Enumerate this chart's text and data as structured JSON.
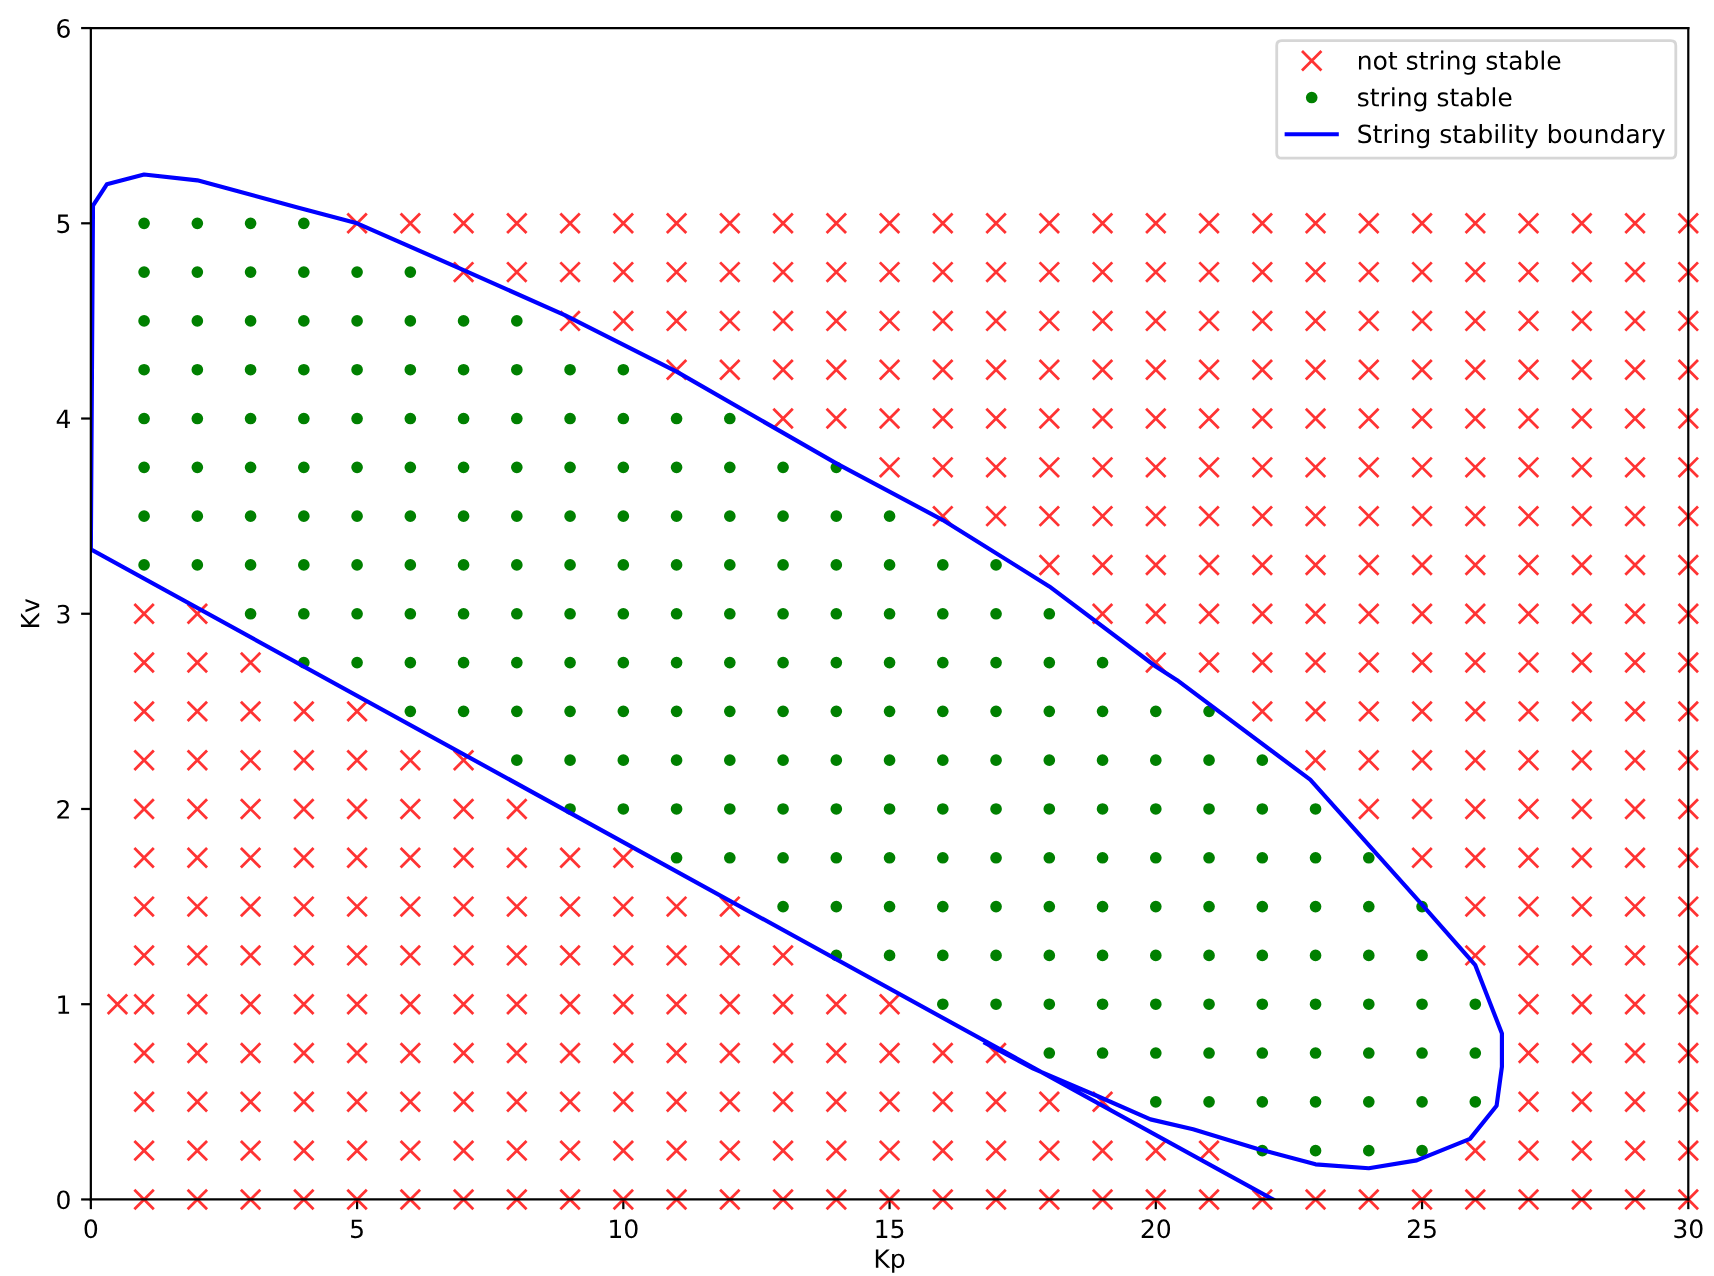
{
  "chart_data": {
    "type": "scatter",
    "xlabel": "Kp",
    "ylabel": "Kv",
    "xlim": [
      0,
      30
    ],
    "ylim": [
      0,
      6
    ],
    "xticks": [
      0,
      5,
      10,
      15,
      20,
      25,
      30
    ],
    "yticks": [
      0,
      1,
      2,
      3,
      4,
      5,
      6
    ],
    "grid": false,
    "legend": "top right",
    "series": [
      {
        "name": "not string stable",
        "marker": "cross",
        "color": "#ff0000",
        "x": [
          5,
          6,
          7,
          8,
          9,
          10,
          11,
          12,
          13,
          14,
          15,
          16,
          17,
          18,
          19,
          20,
          21,
          22,
          23,
          24,
          25,
          26,
          27,
          28,
          29,
          30,
          7,
          8,
          9,
          10,
          11,
          12,
          13,
          14,
          15,
          16,
          17,
          18,
          19,
          20,
          21,
          22,
          23,
          24,
          25,
          26,
          27,
          28,
          29,
          30,
          9,
          10,
          11,
          12,
          13,
          14,
          15,
          16,
          17,
          18,
          19,
          20,
          21,
          22,
          23,
          24,
          25,
          26,
          27,
          28,
          29,
          30,
          11,
          12,
          13,
          14,
          15,
          16,
          17,
          18,
          19,
          20,
          21,
          22,
          23,
          24,
          25,
          26,
          27,
          28,
          29,
          30,
          13,
          14,
          15,
          16,
          17,
          18,
          19,
          20,
          21,
          22,
          23,
          24,
          25,
          26,
          27,
          28,
          29,
          30,
          15,
          16,
          17,
          18,
          19,
          20,
          21,
          22,
          23,
          24,
          25,
          26,
          27,
          28,
          29,
          30,
          16,
          17,
          18,
          19,
          20,
          21,
          22,
          23,
          24,
          25,
          26,
          27,
          28,
          29,
          30,
          18,
          19,
          20,
          21,
          22,
          23,
          24,
          25,
          26,
          27,
          28,
          29,
          30,
          1,
          2,
          19,
          20,
          21,
          22,
          23,
          24,
          25,
          26,
          27,
          28,
          29,
          30,
          1,
          2,
          3,
          20,
          21,
          22,
          23,
          24,
          25,
          26,
          27,
          28,
          29,
          30,
          1,
          2,
          3,
          4,
          5,
          22,
          23,
          24,
          25,
          26,
          27,
          28,
          29,
          30,
          1,
          2,
          3,
          4,
          5,
          6,
          7,
          23,
          24,
          25,
          26,
          27,
          28,
          29,
          30,
          1,
          2,
          3,
          4,
          5,
          6,
          7,
          8,
          24,
          25,
          26,
          27,
          28,
          29,
          30,
          1,
          2,
          3,
          4,
          5,
          6,
          7,
          8,
          9,
          10,
          25,
          26,
          27,
          28,
          29,
          30,
          1,
          2,
          3,
          4,
          5,
          6,
          7,
          8,
          9,
          10,
          11,
          12,
          26,
          27,
          28,
          29,
          30,
          1,
          2,
          3,
          4,
          5,
          6,
          7,
          8,
          9,
          10,
          11,
          12,
          13,
          26,
          27,
          28,
          29,
          30,
          0.5,
          1,
          2,
          3,
          4,
          5,
          6,
          7,
          8,
          9,
          10,
          11,
          12,
          13,
          14,
          15,
          27,
          28,
          29,
          30,
          1,
          2,
          3,
          4,
          5,
          6,
          7,
          8,
          9,
          10,
          11,
          12,
          13,
          14,
          15,
          16,
          17,
          27,
          28,
          29,
          30,
          1,
          2,
          3,
          4,
          5,
          6,
          7,
          8,
          9,
          10,
          11,
          12,
          13,
          14,
          15,
          16,
          17,
          18,
          19,
          27,
          28,
          29,
          30,
          1,
          2,
          3,
          4,
          5,
          6,
          7,
          8,
          9,
          10,
          11,
          12,
          13,
          14,
          15,
          16,
          17,
          18,
          19,
          20,
          21,
          26,
          27,
          28,
          29,
          30,
          1,
          2,
          3,
          4,
          5,
          6,
          7,
          8,
          9,
          10,
          11,
          12,
          13,
          14,
          15,
          16,
          17,
          18,
          19,
          20,
          21,
          22,
          23,
          24,
          25,
          26,
          27,
          28,
          29,
          30
        ],
        "values": [
          5,
          5,
          5,
          5,
          5,
          5,
          5,
          5,
          5,
          5,
          5,
          5,
          5,
          5,
          5,
          5,
          5,
          5,
          5,
          5,
          5,
          5,
          5,
          5,
          5,
          5,
          4.75,
          4.75,
          4.75,
          4.75,
          4.75,
          4.75,
          4.75,
          4.75,
          4.75,
          4.75,
          4.75,
          4.75,
          4.75,
          4.75,
          4.75,
          4.75,
          4.75,
          4.75,
          4.75,
          4.75,
          4.75,
          4.75,
          4.75,
          4.75,
          4.5,
          4.5,
          4.5,
          4.5,
          4.5,
          4.5,
          4.5,
          4.5,
          4.5,
          4.5,
          4.5,
          4.5,
          4.5,
          4.5,
          4.5,
          4.5,
          4.5,
          4.5,
          4.5,
          4.5,
          4.5,
          4.5,
          4.25,
          4.25,
          4.25,
          4.25,
          4.25,
          4.25,
          4.25,
          4.25,
          4.25,
          4.25,
          4.25,
          4.25,
          4.25,
          4.25,
          4.25,
          4.25,
          4.25,
          4.25,
          4.25,
          4.25,
          4,
          4,
          4,
          4,
          4,
          4,
          4,
          4,
          4,
          4,
          4,
          4,
          4,
          4,
          4,
          4,
          4,
          4,
          3.75,
          3.75,
          3.75,
          3.75,
          3.75,
          3.75,
          3.75,
          3.75,
          3.75,
          3.75,
          3.75,
          3.75,
          3.75,
          3.75,
          3.75,
          3.75,
          3.5,
          3.5,
          3.5,
          3.5,
          3.5,
          3.5,
          3.5,
          3.5,
          3.5,
          3.5,
          3.5,
          3.5,
          3.5,
          3.5,
          3.5,
          3.25,
          3.25,
          3.25,
          3.25,
          3.25,
          3.25,
          3.25,
          3.25,
          3.25,
          3.25,
          3.25,
          3.25,
          3.25,
          3,
          3,
          3,
          3,
          3,
          3,
          3,
          3,
          3,
          3,
          3,
          3,
          3,
          3,
          2.75,
          2.75,
          2.75,
          2.75,
          2.75,
          2.75,
          2.75,
          2.75,
          2.75,
          2.75,
          2.75,
          2.75,
          2.75,
          2.75,
          2.5,
          2.5,
          2.5,
          2.5,
          2.5,
          2.5,
          2.5,
          2.5,
          2.5,
          2.5,
          2.5,
          2.5,
          2.5,
          2.5,
          2.25,
          2.25,
          2.25,
          2.25,
          2.25,
          2.25,
          2.25,
          2.25,
          2.25,
          2.25,
          2.25,
          2.25,
          2.25,
          2.25,
          2.25,
          2,
          2,
          2,
          2,
          2,
          2,
          2,
          2,
          2,
          2,
          2,
          2,
          2,
          2,
          2,
          1.75,
          1.75,
          1.75,
          1.75,
          1.75,
          1.75,
          1.75,
          1.75,
          1.75,
          1.75,
          1.75,
          1.75,
          1.75,
          1.75,
          1.75,
          1.75,
          1.5,
          1.5,
          1.5,
          1.5,
          1.5,
          1.5,
          1.5,
          1.5,
          1.5,
          1.5,
          1.5,
          1.5,
          1.5,
          1.5,
          1.5,
          1.5,
          1.5,
          1.25,
          1.25,
          1.25,
          1.25,
          1.25,
          1.25,
          1.25,
          1.25,
          1.25,
          1.25,
          1.25,
          1.25,
          1.25,
          1.25,
          1.25,
          1.25,
          1.25,
          1.25,
          1,
          1,
          1,
          1,
          1,
          1,
          1,
          1,
          1,
          1,
          1,
          1,
          1,
          1,
          1,
          1,
          1,
          1,
          1,
          1,
          0.75,
          0.75,
          0.75,
          0.75,
          0.75,
          0.75,
          0.75,
          0.75,
          0.75,
          0.75,
          0.75,
          0.75,
          0.75,
          0.75,
          0.75,
          0.75,
          0.75,
          0.75,
          0.75,
          0.75,
          0.75,
          0.5,
          0.5,
          0.5,
          0.5,
          0.5,
          0.5,
          0.5,
          0.5,
          0.5,
          0.5,
          0.5,
          0.5,
          0.5,
          0.5,
          0.5,
          0.5,
          0.5,
          0.5,
          0.5,
          0.5,
          0.5,
          0.5,
          0.5,
          0.25,
          0.25,
          0.25,
          0.25,
          0.25,
          0.25,
          0.25,
          0.25,
          0.25,
          0.25,
          0.25,
          0.25,
          0.25,
          0.25,
          0.25,
          0.25,
          0.25,
          0.25,
          0.25,
          0.25,
          0.25,
          0.25,
          0.25,
          0.25,
          0.25,
          0.25,
          0,
          0,
          0,
          0,
          0,
          0,
          0,
          0,
          0,
          0,
          0,
          0,
          0,
          0,
          0,
          0,
          0,
          0,
          0,
          0,
          0,
          0,
          0,
          0,
          0,
          0,
          0,
          0,
          0,
          0
        ]
      },
      {
        "name": "string stable",
        "marker": "circle",
        "color": "#008000",
        "x": [
          1,
          2,
          3,
          4,
          1,
          2,
          3,
          4,
          5,
          6,
          1,
          2,
          3,
          4,
          5,
          6,
          7,
          8,
          1,
          2,
          3,
          4,
          5,
          6,
          7,
          8,
          9,
          10,
          1,
          2,
          3,
          4,
          5,
          6,
          7,
          8,
          9,
          10,
          11,
          12,
          1,
          2,
          3,
          4,
          5,
          6,
          7,
          8,
          9,
          10,
          11,
          12,
          13,
          14,
          1,
          2,
          3,
          4,
          5,
          6,
          7,
          8,
          9,
          10,
          11,
          12,
          13,
          14,
          15,
          1,
          2,
          3,
          4,
          5,
          6,
          7,
          8,
          9,
          10,
          11,
          12,
          13,
          14,
          15,
          16,
          17,
          3,
          4,
          5,
          6,
          7,
          8,
          9,
          10,
          11,
          12,
          13,
          14,
          15,
          16,
          17,
          18,
          4,
          5,
          6,
          7,
          8,
          9,
          10,
          11,
          12,
          13,
          14,
          15,
          16,
          17,
          18,
          19,
          6,
          7,
          8,
          9,
          10,
          11,
          12,
          13,
          14,
          15,
          16,
          17,
          18,
          19,
          20,
          21,
          8,
          9,
          10,
          11,
          12,
          13,
          14,
          15,
          16,
          17,
          18,
          19,
          20,
          21,
          22,
          9,
          10,
          11,
          12,
          13,
          14,
          15,
          16,
          17,
          18,
          19,
          20,
          21,
          22,
          23,
          11,
          12,
          13,
          14,
          15,
          16,
          17,
          18,
          19,
          20,
          21,
          22,
          23,
          24,
          13,
          14,
          15,
          16,
          17,
          18,
          19,
          20,
          21,
          22,
          23,
          24,
          25,
          14,
          15,
          16,
          17,
          18,
          19,
          20,
          21,
          22,
          23,
          24,
          25,
          16,
          17,
          18,
          19,
          20,
          21,
          22,
          23,
          24,
          25,
          26,
          18,
          19,
          20,
          21,
          22,
          23,
          24,
          25,
          26,
          20,
          21,
          22,
          23,
          24,
          25,
          26,
          22,
          23,
          24,
          25
        ],
        "values": [
          5,
          5,
          5,
          5,
          4.75,
          4.75,
          4.75,
          4.75,
          4.75,
          4.75,
          4.5,
          4.5,
          4.5,
          4.5,
          4.5,
          4.5,
          4.5,
          4.5,
          4.25,
          4.25,
          4.25,
          4.25,
          4.25,
          4.25,
          4.25,
          4.25,
          4.25,
          4.25,
          4,
          4,
          4,
          4,
          4,
          4,
          4,
          4,
          4,
          4,
          4,
          4,
          3.75,
          3.75,
          3.75,
          3.75,
          3.75,
          3.75,
          3.75,
          3.75,
          3.75,
          3.75,
          3.75,
          3.75,
          3.75,
          3.75,
          3.5,
          3.5,
          3.5,
          3.5,
          3.5,
          3.5,
          3.5,
          3.5,
          3.5,
          3.5,
          3.5,
          3.5,
          3.5,
          3.5,
          3.5,
          3.25,
          3.25,
          3.25,
          3.25,
          3.25,
          3.25,
          3.25,
          3.25,
          3.25,
          3.25,
          3.25,
          3.25,
          3.25,
          3.25,
          3.25,
          3.25,
          3.25,
          3,
          3,
          3,
          3,
          3,
          3,
          3,
          3,
          3,
          3,
          3,
          3,
          3,
          3,
          3,
          3,
          2.75,
          2.75,
          2.75,
          2.75,
          2.75,
          2.75,
          2.75,
          2.75,
          2.75,
          2.75,
          2.75,
          2.75,
          2.75,
          2.75,
          2.75,
          2.75,
          2.5,
          2.5,
          2.5,
          2.5,
          2.5,
          2.5,
          2.5,
          2.5,
          2.5,
          2.5,
          2.5,
          2.5,
          2.5,
          2.5,
          2.5,
          2.5,
          2.25,
          2.25,
          2.25,
          2.25,
          2.25,
          2.25,
          2.25,
          2.25,
          2.25,
          2.25,
          2.25,
          2.25,
          2.25,
          2.25,
          2.25,
          2,
          2,
          2,
          2,
          2,
          2,
          2,
          2,
          2,
          2,
          2,
          2,
          2,
          2,
          2,
          1.75,
          1.75,
          1.75,
          1.75,
          1.75,
          1.75,
          1.75,
          1.75,
          1.75,
          1.75,
          1.75,
          1.75,
          1.75,
          1.75,
          1.5,
          1.5,
          1.5,
          1.5,
          1.5,
          1.5,
          1.5,
          1.5,
          1.5,
          1.5,
          1.5,
          1.5,
          1.5,
          1.25,
          1.25,
          1.25,
          1.25,
          1.25,
          1.25,
          1.25,
          1.25,
          1.25,
          1.25,
          1.25,
          1.25,
          1,
          1,
          1,
          1,
          1,
          1,
          1,
          1,
          1,
          1,
          1,
          0.75,
          0.75,
          0.75,
          0.75,
          0.75,
          0.75,
          0.75,
          0.75,
          0.75,
          0.5,
          0.5,
          0.5,
          0.5,
          0.5,
          0.5,
          0.5,
          0.25,
          0.25,
          0.25,
          0.25
        ]
      },
      {
        "name": "String stability boundary",
        "type": "line",
        "marker": "none",
        "line_style": "solid",
        "color": "#0000ff",
        "x": [
          22.2,
          0,
          0.04,
          0.3,
          1,
          2,
          3.9,
          5,
          7,
          8.9,
          11,
          14,
          16,
          18,
          20,
          20.4,
          22.9,
          25,
          26,
          26.5,
          26.5,
          26.4,
          25.9,
          24.9,
          24,
          23,
          21.9,
          20.7,
          19.9,
          18.9,
          17.7,
          16.8
        ],
        "values": [
          0,
          3.33,
          5.09,
          5.2,
          5.25,
          5.22,
          5.08,
          5,
          4.76,
          4.53,
          4.24,
          3.77,
          3.48,
          3.14,
          2.73,
          2.66,
          2.15,
          1.51,
          1.2,
          0.85,
          0.68,
          0.48,
          0.31,
          0.2,
          0.16,
          0.18,
          0.26,
          0.36,
          0.41,
          0.53,
          0.67,
          0.8
        ]
      }
    ]
  }
}
